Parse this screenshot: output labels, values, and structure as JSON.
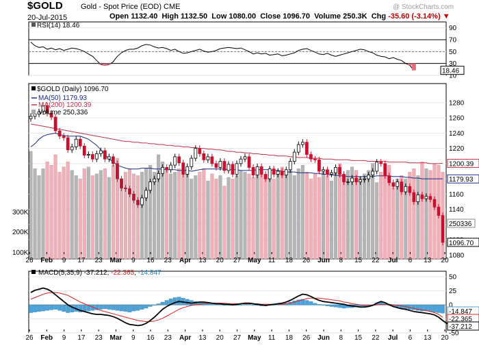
{
  "header": {
    "symbol": "$GOLD",
    "name": "Gold - Spot Price (EOD)",
    "exchange": "CME",
    "watermark": "@ StockCharts.com",
    "date": "20-Jul-2015",
    "open_label": "Open",
    "open": "1132.40",
    "high_label": "High",
    "high": "1132.50",
    "low_label": "Low",
    "low": "1080.00",
    "close_label": "Close",
    "close": "1096.70",
    "volume_label": "Volume",
    "volume": "250.3K",
    "chg_label": "Chg",
    "chg": "-35.60 (-3.14%)"
  },
  "colors": {
    "up_candle": "#000000",
    "down_candle": "#c8102e",
    "ma50": "#1b2a8a",
    "ma200": "#c0304d",
    "volume_up": "#b5b5b5",
    "volume_down": "#f0b0b8",
    "rsi_line": "#000000",
    "macd_line": "#000000",
    "signal_line": "#e02020",
    "histogram": "#4aa3d8"
  },
  "x_axis": {
    "labels": [
      "26",
      "Feb",
      "9",
      "17",
      "23",
      "Mar",
      "9",
      "16",
      "23",
      "Apr",
      "13",
      "20",
      "27",
      "May",
      "11",
      "18",
      "26",
      "Jun",
      "8",
      "15",
      "22",
      "Jul",
      "6",
      "13",
      "20"
    ],
    "bold_labels": [
      "Feb",
      "Mar",
      "Apr",
      "May",
      "Jun",
      "Jul"
    ]
  },
  "chart_data": [
    {
      "type": "line",
      "title": "RSI(14) 18.46",
      "label": "RSI(14)",
      "value_text": "18.46",
      "ylim": [
        10,
        100
      ],
      "yticks": [
        10,
        30,
        50,
        70,
        90
      ],
      "reference_lines": [
        30,
        70
      ],
      "last_value_box": "18.46",
      "values": [
        66,
        60,
        57,
        58,
        54,
        56,
        53,
        55,
        52,
        54,
        56,
        55,
        53,
        50,
        46,
        42,
        35,
        28,
        27,
        28,
        33,
        42,
        48,
        52,
        54,
        54,
        56,
        60,
        62,
        61,
        58,
        56,
        57,
        55,
        52,
        54,
        50,
        47,
        48,
        50,
        52,
        54,
        51,
        49,
        50,
        52,
        55,
        56,
        57,
        56,
        55,
        56,
        53,
        50,
        46,
        48,
        46,
        47,
        44,
        45,
        46,
        43,
        44,
        46,
        48,
        52,
        54,
        55,
        52,
        49,
        46,
        45,
        47,
        44,
        42,
        44,
        46,
        48,
        50,
        52,
        54,
        53,
        50,
        48,
        44,
        42,
        41,
        38,
        40,
        37,
        35,
        30,
        27,
        18.46
      ]
    },
    {
      "type": "candlestick",
      "title": "$GOLD (Daily) 1096.70",
      "legend": [
        {
          "name": "$GOLD (Daily)",
          "value": "1096.70"
        },
        {
          "name": "MA(50)",
          "value": "1179.93"
        },
        {
          "name": "MA(200)",
          "value": "1200.39"
        },
        {
          "name": "Volume",
          "value": "250,336"
        }
      ],
      "ylim": [
        1075,
        1305
      ],
      "yticks": [
        1080,
        1100,
        1120,
        1140,
        1160,
        1180,
        1200,
        1220,
        1240,
        1260,
        1280
      ],
      "volume_axis": {
        "ticks": [
          "100K",
          "200K",
          "300K"
        ],
        "max": 600000
      },
      "last_value_boxes": {
        "ma200": "1200.39",
        "volume": "250336",
        "ma50": "1179.93",
        "close": "1096.70"
      },
      "close": [
        1262,
        1265,
        1268,
        1276,
        1266,
        1261,
        1243,
        1236,
        1234,
        1218,
        1222,
        1232,
        1223,
        1211,
        1212,
        1206,
        1213,
        1217,
        1206,
        1209,
        1200,
        1180,
        1168,
        1167,
        1160,
        1152,
        1146,
        1155,
        1165,
        1176,
        1180,
        1187,
        1195,
        1192,
        1198,
        1209,
        1201,
        1186,
        1196,
        1207,
        1220,
        1213,
        1205,
        1209,
        1200,
        1195,
        1203,
        1191,
        1199,
        1186,
        1200,
        1206,
        1209,
        1195,
        1185,
        1196,
        1186,
        1180,
        1193,
        1186,
        1190,
        1185,
        1192,
        1203,
        1215,
        1225,
        1228,
        1212,
        1206,
        1205,
        1190,
        1192,
        1186,
        1188,
        1195,
        1186,
        1176,
        1176,
        1181,
        1176,
        1179,
        1180,
        1185,
        1190,
        1202,
        1200,
        1184,
        1175,
        1170,
        1176,
        1163,
        1170,
        1162,
        1150,
        1159,
        1154,
        1157,
        1153,
        1143,
        1132,
        1096.7
      ],
      "volume": [
        310,
        260,
        240,
        260,
        280,
        270,
        300,
        250,
        265,
        280,
        255,
        240,
        230,
        260,
        265,
        240,
        245,
        255,
        260,
        235,
        270,
        290,
        230,
        250,
        260,
        245,
        240,
        250,
        260,
        270,
        250,
        300,
        280,
        260,
        245,
        250,
        260,
        255,
        260,
        230,
        240,
        250,
        260,
        225,
        245,
        230,
        240,
        210,
        235,
        230,
        240,
        255,
        250,
        245,
        235,
        260,
        250,
        240,
        255,
        230,
        250,
        265,
        245,
        255,
        240,
        260,
        270,
        250,
        230,
        245,
        235,
        250,
        240,
        225,
        260,
        275,
        240,
        255,
        265,
        255,
        235,
        245,
        255,
        275,
        220,
        250,
        240,
        270,
        205,
        230,
        240,
        230,
        250,
        260,
        240,
        280,
        260,
        255,
        275,
        270,
        250
      ],
      "ma50": [
        1222,
        1226,
        1232,
        1236,
        1238,
        1239,
        1240,
        1238,
        1237,
        1236,
        1236,
        1236,
        1236,
        1234,
        1232,
        1228,
        1224,
        1218,
        1212,
        1206,
        1202,
        1198,
        1196,
        1194,
        1193,
        1193,
        1193,
        1194,
        1194,
        1194,
        1193,
        1193,
        1193,
        1192,
        1192,
        1192,
        1191,
        1191,
        1191,
        1190,
        1191,
        1192,
        1193,
        1193,
        1193,
        1193,
        1193,
        1193,
        1192,
        1192,
        1192,
        1191,
        1191,
        1191,
        1191,
        1192,
        1192,
        1192,
        1192,
        1191,
        1191,
        1190,
        1189,
        1189,
        1189,
        1188,
        1188,
        1188,
        1188,
        1187,
        1187,
        1186,
        1186,
        1185,
        1185,
        1184,
        1184,
        1183,
        1183,
        1183,
        1183,
        1183,
        1183,
        1183,
        1184,
        1184,
        1184,
        1184,
        1183,
        1183,
        1183,
        1182,
        1182,
        1181,
        1181,
        1180,
        1180,
        1180,
        1180,
        1180,
        1180
      ],
      "ma200": [
        1252,
        1251,
        1250,
        1249,
        1248,
        1247,
        1246,
        1245,
        1244,
        1243,
        1242,
        1241,
        1240,
        1239,
        1238,
        1237,
        1236,
        1235,
        1234,
        1233,
        1232,
        1231,
        1230,
        1229,
        1229,
        1228,
        1228,
        1227,
        1227,
        1226,
        1226,
        1225,
        1225,
        1224,
        1224,
        1223,
        1223,
        1222,
        1222,
        1221,
        1221,
        1220,
        1220,
        1219,
        1219,
        1218,
        1218,
        1217,
        1216,
        1216,
        1215,
        1215,
        1214,
        1214,
        1213,
        1213,
        1212,
        1212,
        1211,
        1211,
        1210,
        1210,
        1210,
        1209,
        1209,
        1208,
        1208,
        1208,
        1207,
        1207,
        1207,
        1206,
        1206,
        1206,
        1205,
        1205,
        1205,
        1205,
        1204,
        1204,
        1204,
        1204,
        1203,
        1203,
        1203,
        1203,
        1203,
        1202,
        1202,
        1202,
        1202,
        1202,
        1201,
        1201,
        1201,
        1201,
        1201,
        1200,
        1200,
        1200,
        1200.39
      ]
    },
    {
      "type": "line",
      "title": "MACD(5,35,9) -37.212, -22.365, -14.847",
      "label": "MACD(5,35,9)",
      "values_text": [
        "-37.212",
        "-22.365",
        "-14.847"
      ],
      "ylim": [
        -50,
        60
      ],
      "yticks": [
        -50,
        -25,
        0,
        25,
        50
      ],
      "last_value_boxes": [
        "-14.847",
        "-22.365",
        "-37.212"
      ],
      "series": [
        {
          "name": "MACD",
          "values": [
            22,
            26,
            28,
            30,
            28,
            24,
            18,
            12,
            6,
            0,
            -4,
            -7,
            -10,
            -12,
            -14,
            -16,
            -17,
            -17,
            -18,
            -19,
            -21,
            -24,
            -28,
            -32,
            -35,
            -36,
            -37,
            -36,
            -33,
            -28,
            -22,
            -15,
            -8,
            -3,
            1,
            4,
            6,
            5,
            4,
            3,
            4,
            5,
            5,
            4,
            3,
            2,
            2,
            1,
            1,
            0,
            1,
            2,
            3,
            3,
            2,
            1,
            0,
            -1,
            0,
            1,
            2,
            3,
            5,
            8,
            12,
            16,
            19,
            18,
            15,
            11,
            8,
            6,
            5,
            4,
            3,
            2,
            1,
            -1,
            -2,
            -3,
            -4,
            -4,
            -3,
            -1,
            3,
            6,
            4,
            0,
            -3,
            -5,
            -7,
            -8,
            -10,
            -12,
            -13,
            -14,
            -15,
            -16,
            -18,
            -22,
            -28,
            -33,
            -37.212
          ]
        },
        {
          "name": "Signal",
          "values": [
            10,
            13,
            16,
            19,
            21,
            22,
            22,
            21,
            19,
            17,
            13,
            9,
            5,
            2,
            -1,
            -4,
            -7,
            -10,
            -12,
            -14,
            -16,
            -18,
            -20,
            -22,
            -24,
            -26,
            -28,
            -29,
            -30,
            -30,
            -29,
            -27,
            -24,
            -20,
            -16,
            -12,
            -8,
            -5,
            -3,
            -1,
            0,
            1,
            2,
            3,
            3,
            3,
            3,
            3,
            2,
            2,
            2,
            2,
            2,
            2,
            2,
            2,
            1,
            1,
            1,
            1,
            1,
            1,
            2,
            3,
            5,
            7,
            9,
            11,
            12,
            12,
            12,
            11,
            10,
            9,
            8,
            7,
            5,
            4,
            2,
            1,
            0,
            -1,
            -1,
            -1,
            0,
            1,
            1,
            1,
            0,
            -1,
            -2,
            -3,
            -5,
            -6,
            -8,
            -9,
            -10,
            -12,
            -14,
            -17,
            -22.365
          ]
        },
        {
          "name": "Histogram",
          "values": [
            -14,
            -13,
            -12,
            -11,
            -10,
            -9,
            -8,
            -10,
            -12,
            -14,
            -13,
            -12,
            -13,
            -12,
            -11,
            -10,
            -9,
            -8,
            -7,
            -8,
            -9,
            -10,
            -11,
            -12,
            -13,
            -11,
            -10,
            -8,
            -6,
            -3,
            -1,
            2,
            5,
            8,
            11,
            13,
            14,
            12,
            10,
            8,
            6,
            5,
            4,
            3,
            3,
            2,
            1,
            0,
            -1,
            -1,
            -1,
            0,
            1,
            1,
            0,
            -1,
            -2,
            -2,
            -1,
            0,
            1,
            2,
            3,
            5,
            7,
            9,
            10,
            8,
            6,
            3,
            1,
            -1,
            -2,
            -3,
            -4,
            -5,
            -6,
            -5,
            -5,
            -4,
            -4,
            -3,
            -2,
            0,
            3,
            5,
            3,
            0,
            -2,
            -4,
            -6,
            -7,
            -8,
            -9,
            -10,
            -11,
            -11,
            -12,
            -13,
            -14,
            -14.847
          ]
        }
      ]
    }
  ]
}
